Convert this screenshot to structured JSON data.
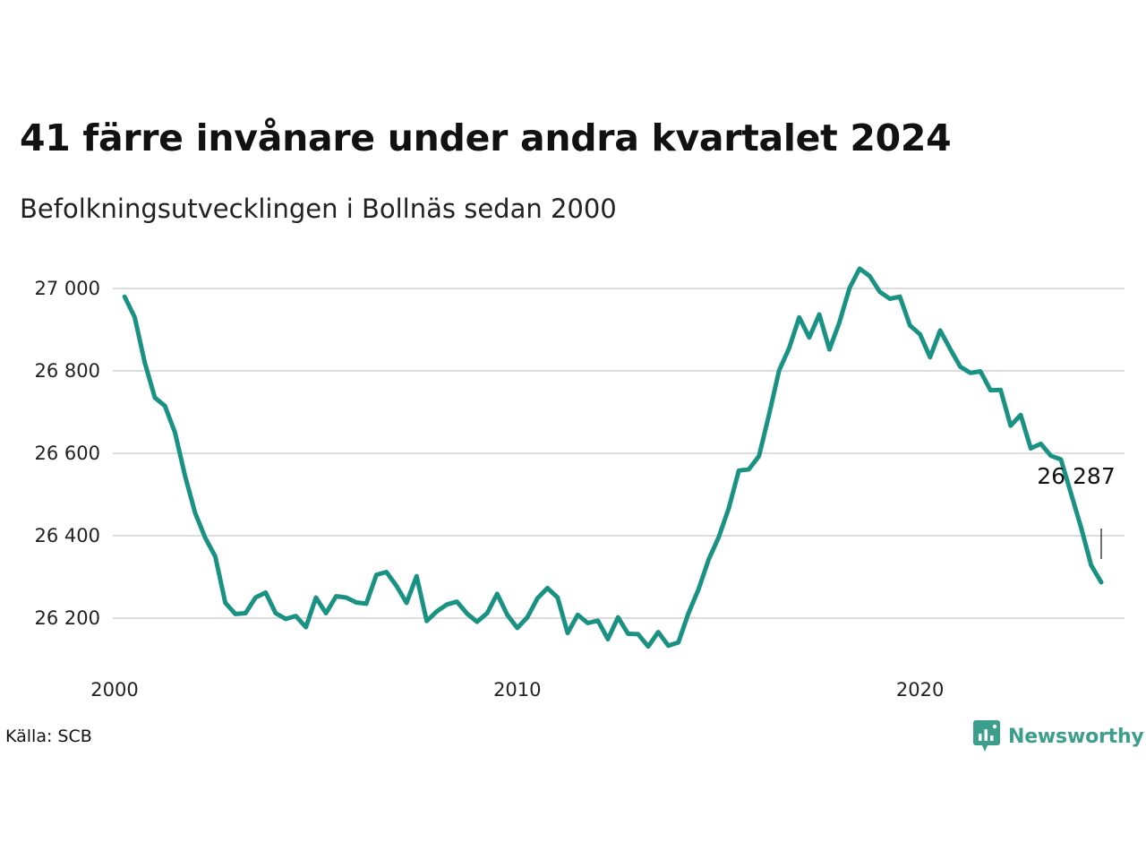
{
  "title": "41 färre invånare under andra kvartalet 2024",
  "subtitle": "Befolkningsutvecklingen i Bollnäs sedan 2000",
  "source": "Källa: SCB",
  "brand": {
    "name": "Newsworthy",
    "logo_icon": "chart-bubble-icon",
    "color": "#3c9f8b"
  },
  "chart_data": {
    "type": "line",
    "line_color": "#1a9283",
    "grid": true,
    "ylim": [
      26100,
      27050
    ],
    "xlim": [
      2000,
      2025
    ],
    "y_ticks": [
      {
        "value": 27000,
        "label": "27 000"
      },
      {
        "value": 26800,
        "label": "26 800"
      },
      {
        "value": 26600,
        "label": "26 600"
      },
      {
        "value": 26400,
        "label": "26 400"
      },
      {
        "value": 26200,
        "label": "26 200"
      }
    ],
    "x_ticks": [
      {
        "value": 2000,
        "label": "2000"
      },
      {
        "value": 2010,
        "label": "2010"
      },
      {
        "value": 2020,
        "label": "2020"
      }
    ],
    "start_period": "2000 Q1",
    "values": [
      26980,
      26930,
      26820,
      26735,
      26715,
      26650,
      26545,
      26455,
      26395,
      26350,
      26237,
      26210,
      26212,
      26250,
      26262,
      26212,
      26198,
      26205,
      26178,
      26250,
      26212,
      26253,
      26250,
      26238,
      26235,
      26305,
      26312,
      26278,
      26237,
      26302,
      26193,
      26216,
      26233,
      26240,
      26211,
      26191,
      26212,
      26259,
      26208,
      26176,
      26202,
      26248,
      26273,
      26250,
      26164,
      26208,
      26188,
      26194,
      26149,
      26202,
      26162,
      26161,
      26131,
      26166,
      26133,
      26141,
      26212,
      26270,
      26342,
      26396,
      26466,
      26558,
      26561,
      26593,
      26693,
      26801,
      26855,
      26930,
      26881,
      26937,
      26852,
      26918,
      27001,
      27048,
      27030,
      26992,
      26975,
      26980,
      26910,
      26889,
      26833,
      26898,
      26853,
      26810,
      26795,
      26799,
      26753,
      26754,
      26667,
      26693,
      26612,
      26623,
      26594,
      26585,
      26502,
      26420,
      26328,
      26287
    ],
    "annotation": {
      "label": "26 287"
    }
  }
}
